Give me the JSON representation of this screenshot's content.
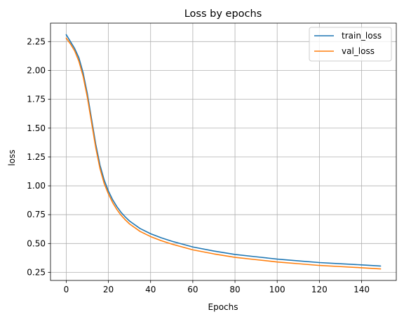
{
  "chart_data": {
    "type": "line",
    "title": "Loss by epochs",
    "xlabel": "Epochs",
    "ylabel": "loss",
    "xlim": [
      -7.45,
      156.45
    ],
    "ylim": [
      0.18,
      2.41
    ],
    "xticks": [
      0,
      20,
      40,
      60,
      80,
      100,
      120,
      140
    ],
    "yticks": [
      0.25,
      0.5,
      0.75,
      1.0,
      1.25,
      1.5,
      1.75,
      2.0,
      2.25
    ],
    "grid": true,
    "legend_position": "top-right",
    "series": [
      {
        "name": "train_loss",
        "color": "#1f77b4",
        "x": [
          0,
          2,
          4,
          6,
          8,
          10,
          12,
          14,
          16,
          18,
          20,
          22,
          24,
          26,
          28,
          30,
          35,
          40,
          45,
          50,
          55,
          60,
          70,
          80,
          90,
          100,
          110,
          120,
          130,
          140,
          149
        ],
        "y": [
          2.31,
          2.25,
          2.19,
          2.11,
          1.98,
          1.8,
          1.58,
          1.36,
          1.18,
          1.05,
          0.955,
          0.88,
          0.82,
          0.77,
          0.73,
          0.695,
          0.63,
          0.585,
          0.55,
          0.52,
          0.495,
          0.47,
          0.435,
          0.405,
          0.385,
          0.365,
          0.35,
          0.335,
          0.325,
          0.315,
          0.305
        ]
      },
      {
        "name": "val_loss",
        "color": "#ff7f0e",
        "x": [
          0,
          2,
          4,
          6,
          8,
          10,
          12,
          14,
          16,
          18,
          20,
          22,
          24,
          26,
          28,
          30,
          35,
          40,
          45,
          50,
          55,
          60,
          70,
          80,
          90,
          100,
          110,
          120,
          130,
          140,
          149
        ],
        "y": [
          2.28,
          2.23,
          2.17,
          2.08,
          1.95,
          1.77,
          1.55,
          1.33,
          1.15,
          1.02,
          0.93,
          0.855,
          0.795,
          0.745,
          0.705,
          0.67,
          0.605,
          0.56,
          0.525,
          0.495,
          0.47,
          0.445,
          0.41,
          0.38,
          0.36,
          0.34,
          0.325,
          0.31,
          0.3,
          0.29,
          0.28
        ]
      }
    ]
  }
}
